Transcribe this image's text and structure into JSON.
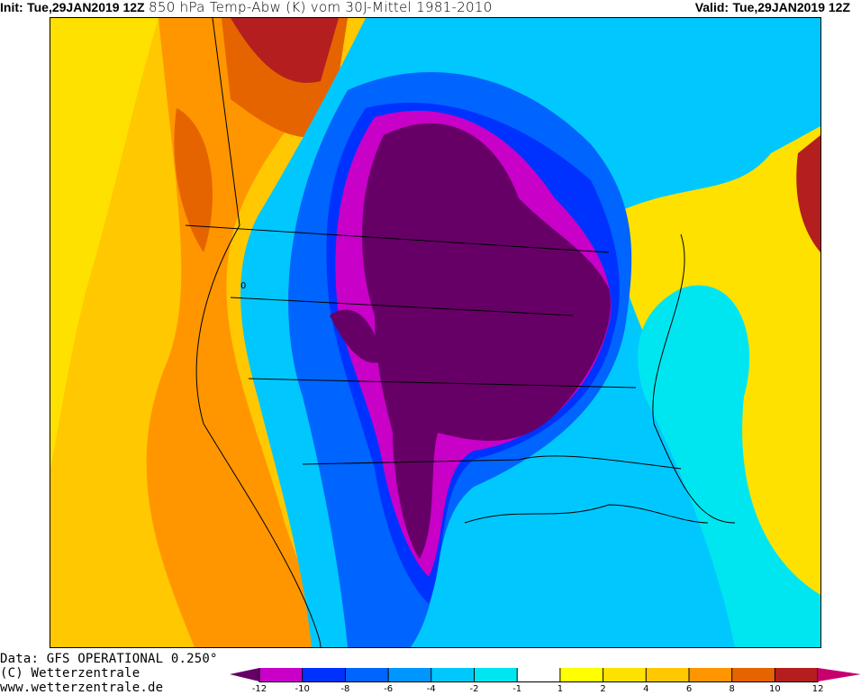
{
  "header": {
    "init_label": "Init:",
    "init_value": "Tue,29JAN2019 12Z",
    "title": "850 hPa Temp-Abw (K) vom 30J-Mittel 1981-2010",
    "valid_label": "Valid:",
    "valid_value": "Tue,29JAN2019 12Z"
  },
  "footer": {
    "data_line": "Data: GFS OPERATIONAL 0.250°",
    "copyright": "(C) Wetterzentrale",
    "website": "www.wetterzentrale.de"
  },
  "legend": {
    "ticks": [
      "-12",
      "-10",
      "-8",
      "-6",
      "-4",
      "-2",
      "-1",
      "1",
      "2",
      "4",
      "6",
      "8",
      "10",
      "12"
    ],
    "colors": [
      "#660066",
      "#c800c8",
      "#0032ff",
      "#0064ff",
      "#0096ff",
      "#00c8ff",
      "#00e6f0",
      "#ffffff",
      "#ffff00",
      "#ffe100",
      "#ffc800",
      "#ff9600",
      "#e66400",
      "#b41e1e",
      "#c8006e"
    ]
  },
  "map": {
    "contour_label": "0"
  }
}
